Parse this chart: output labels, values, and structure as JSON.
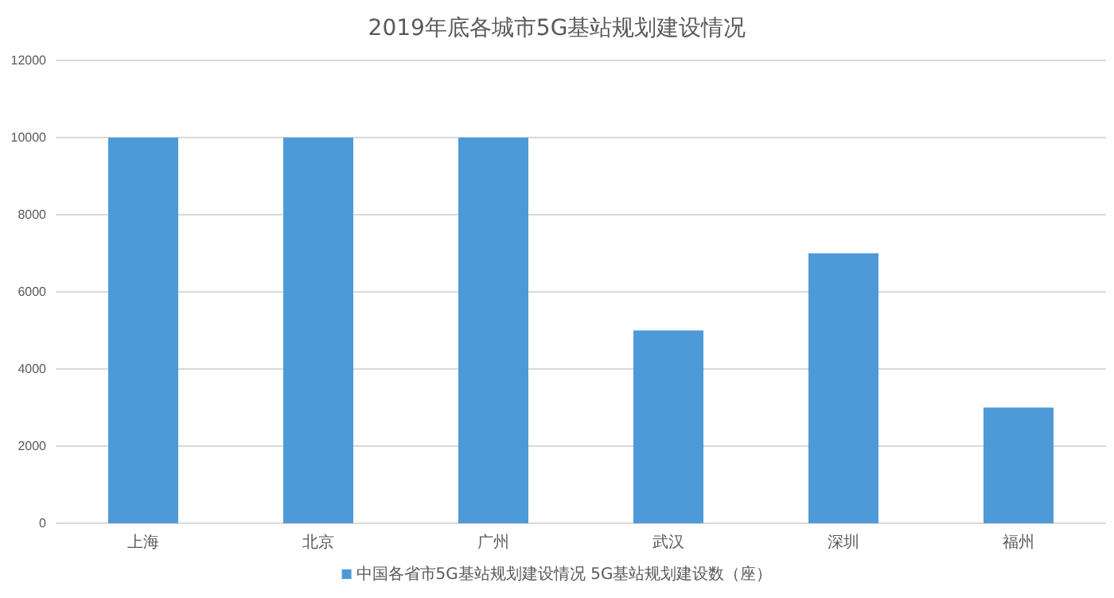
{
  "chart_data": {
    "type": "bar",
    "title": "2019年底各城市5G基站规划建设情况",
    "categories": [
      "上海",
      "北京",
      "广州",
      "武汉",
      "深圳",
      "福州"
    ],
    "series": [
      {
        "name": "中国各省市5G基站规划建设情况 5G基站规划建设数（座）",
        "color": "#4e9ad8",
        "values": [
          10000,
          10000,
          10000,
          5000,
          7000,
          3000
        ]
      }
    ],
    "ylim": [
      0,
      12000
    ],
    "yticks": [
      0,
      2000,
      4000,
      6000,
      8000,
      10000,
      12000
    ],
    "grid": "y",
    "legend": "bottom"
  }
}
